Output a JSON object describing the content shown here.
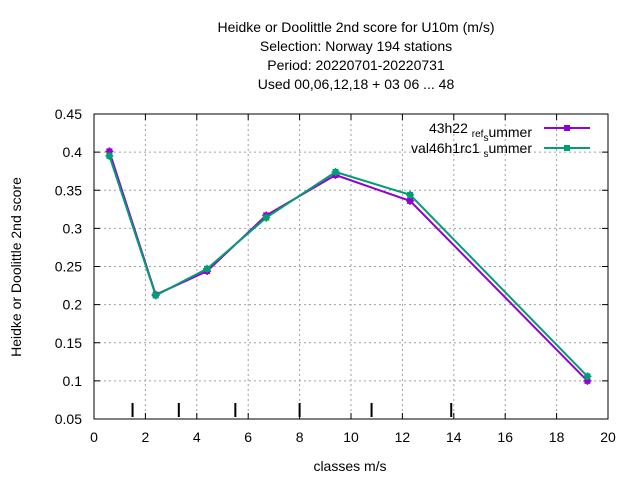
{
  "chart_data": {
    "type": "line",
    "title_lines": [
      "Heidke or Doolittle 2nd score  for U10m (m/s)",
      "Selection: Norway    194 stations",
      "Period: 20220701-20220731",
      "Used  00,06,12,18  + 03 06 ... 48"
    ],
    "xlabel": "classes m/s",
    "ylabel": "Heidke or Doolittle 2nd score",
    "xlim": [
      0,
      20
    ],
    "ylim": [
      0.05,
      0.45
    ],
    "xticks": [
      "0",
      "2",
      "4",
      "6",
      "8",
      "10",
      "12",
      "14",
      "16",
      "18",
      "20"
    ],
    "yticks": [
      "0.05",
      "0.1",
      "0.15",
      "0.2",
      "0.25",
      "0.3",
      "0.35",
      "0.4",
      "0.45"
    ],
    "grid": true,
    "legend_position": "top-right",
    "class_boundaries": [
      1.5,
      3.3,
      5.5,
      8.0,
      10.8,
      13.9
    ],
    "series": [
      {
        "name": "43h22_ref_summer",
        "legend_main": "43h22",
        "legend_parts": [
          [
            "ref",
            "sub"
          ],
          [
            "s",
            "sub"
          ],
          [
            "ummer",
            "normal"
          ]
        ],
        "color": "#9400d3",
        "x": [
          0.6,
          2.4,
          4.4,
          6.7,
          9.4,
          12.3,
          19.2
        ],
        "y": [
          0.401,
          0.213,
          0.244,
          0.317,
          0.37,
          0.336,
          0.1
        ]
      },
      {
        "name": "val46h1rc1_summer",
        "legend_main": "val46h1rc1",
        "legend_parts": [
          [
            "s",
            "sub"
          ],
          [
            "ummer",
            "normal"
          ]
        ],
        "color": "#009e73",
        "x": [
          0.6,
          2.4,
          4.4,
          6.7,
          9.4,
          12.3,
          19.2
        ],
        "y": [
          0.395,
          0.212,
          0.247,
          0.314,
          0.374,
          0.344,
          0.106
        ]
      }
    ]
  }
}
